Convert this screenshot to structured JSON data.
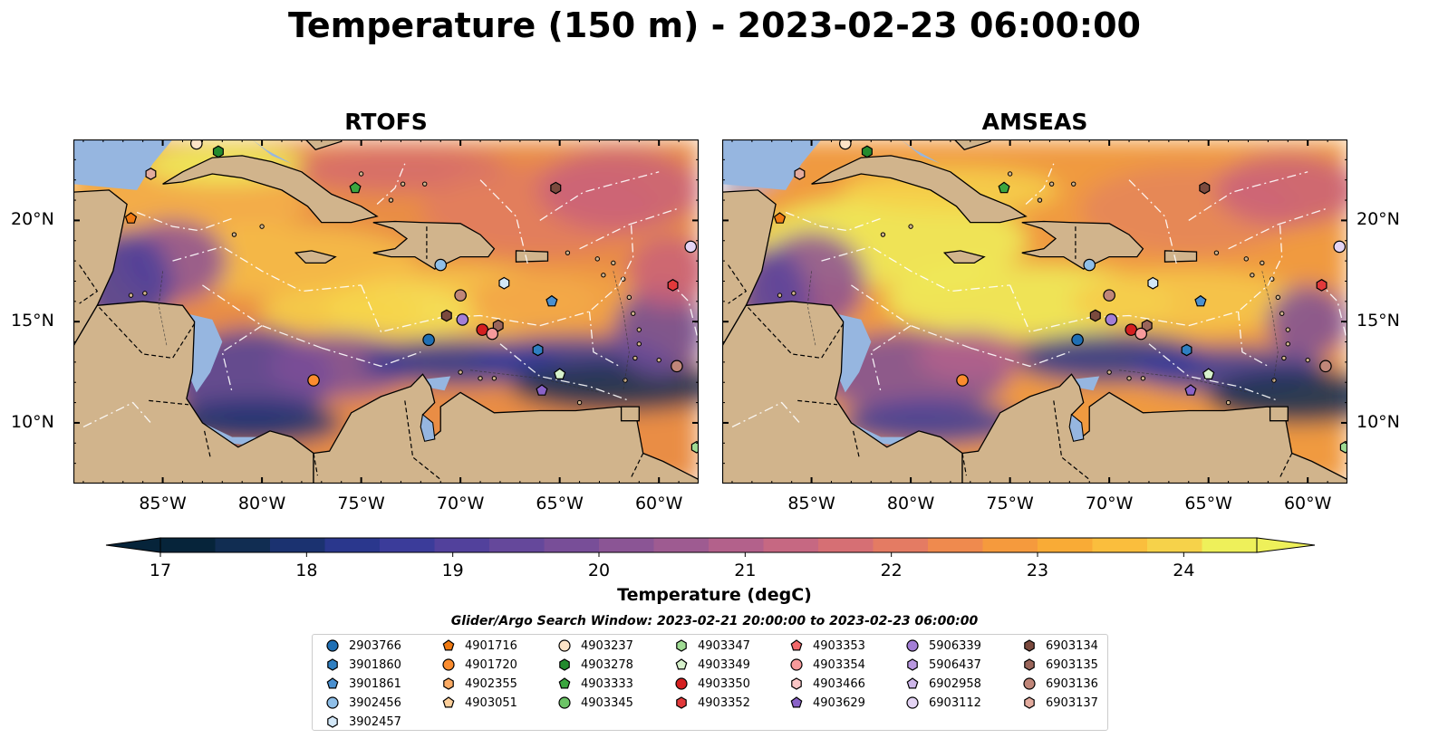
{
  "title": "Temperature (150 m) - 2023-02-23 06:00:00",
  "panels": [
    {
      "title": "RTOFS"
    },
    {
      "title": "AMSEAS"
    }
  ],
  "axes": {
    "lon_labels": [
      "85°W",
      "80°W",
      "75°W",
      "70°W",
      "65°W",
      "60°W"
    ],
    "lat_labels": [
      "20°N",
      "15°N",
      "10°N"
    ]
  },
  "colorbar": {
    "label": "Temperature (degC)",
    "ticks": [
      "17",
      "18",
      "19",
      "20",
      "21",
      "22",
      "23",
      "24"
    ],
    "range": [
      17,
      24.5
    ],
    "extend": "both",
    "colors": [
      "#06243a",
      "#112d52",
      "#1b3270",
      "#2a378d",
      "#3b3c9a",
      "#52419c",
      "#65489b",
      "#784e98",
      "#8b5595",
      "#9e5b91",
      "#b3618b",
      "#c66882",
      "#d66f74",
      "#e47b63",
      "#ef8a4e",
      "#f59a3d",
      "#f9ab36",
      "#fabe3d",
      "#f6d24a",
      "#eef05a"
    ]
  },
  "search_window": "Glider/Argo Search Window: 2023-02-21 20:00:00 to 2023-02-23 06:00:00",
  "legend": [
    {
      "id": "2903766",
      "marker": "circle",
      "color": "#1f6fb4"
    },
    {
      "id": "3901860",
      "marker": "hexagon",
      "color": "#2f7fc1"
    },
    {
      "id": "3901861",
      "marker": "pentagon",
      "color": "#4a90d0"
    },
    {
      "id": "3902456",
      "marker": "circle",
      "color": "#8fbfe8"
    },
    {
      "id": "3902457",
      "marker": "hexagon",
      "color": "#d2e7f7"
    },
    {
      "id": "4901716",
      "marker": "pentagon",
      "color": "#f07a12"
    },
    {
      "id": "4901720",
      "marker": "circle",
      "color": "#fb8c2e"
    },
    {
      "id": "4902355",
      "marker": "hexagon",
      "color": "#fcab64"
    },
    {
      "id": "4903051",
      "marker": "pentagon",
      "color": "#fdcf9a"
    },
    {
      "id": "4903237",
      "marker": "circle",
      "color": "#fde3c7"
    },
    {
      "id": "4903278",
      "marker": "hexagon",
      "color": "#238b2e"
    },
    {
      "id": "4903333",
      "marker": "pentagon",
      "color": "#3ba63f"
    },
    {
      "id": "4903345",
      "marker": "circle",
      "color": "#6cc466"
    },
    {
      "id": "4903347",
      "marker": "hexagon",
      "color": "#a0dc94"
    },
    {
      "id": "4903349",
      "marker": "pentagon",
      "color": "#d7f2cc"
    },
    {
      "id": "4903350",
      "marker": "circle",
      "color": "#d41f20"
    },
    {
      "id": "4903352",
      "marker": "hexagon",
      "color": "#e2393b"
    },
    {
      "id": "4903353",
      "marker": "pentagon",
      "color": "#f1686a"
    },
    {
      "id": "4903354",
      "marker": "circle",
      "color": "#f79a9b"
    },
    {
      "id": "4903466",
      "marker": "hexagon",
      "color": "#fbc6c6"
    },
    {
      "id": "4903629",
      "marker": "pentagon",
      "color": "#8a62c8"
    },
    {
      "id": "5906339",
      "marker": "circle",
      "color": "#a37ed6"
    },
    {
      "id": "5906437",
      "marker": "hexagon",
      "color": "#b998e0"
    },
    {
      "id": "6902958",
      "marker": "pentagon",
      "color": "#ceb7ea"
    },
    {
      "id": "6903112",
      "marker": "circle",
      "color": "#e4d4f4"
    },
    {
      "id": "6903134",
      "marker": "hexagon",
      "color": "#7b4a3e"
    },
    {
      "id": "6903135",
      "marker": "hexagon",
      "color": "#9a655a"
    },
    {
      "id": "6903136",
      "marker": "circle",
      "color": "#c08679"
    },
    {
      "id": "6903137",
      "marker": "hexagon",
      "color": "#e3ab9e"
    }
  ],
  "map": {
    "lon_range": [
      -89.5,
      -58.0
    ],
    "lat_range": [
      7.0,
      24.0
    ],
    "land_color": "#d1b48c",
    "ocean_color": "#96b6e0",
    "floats": [
      {
        "lon": -86.6,
        "lat": 20.1,
        "id": "4901716"
      },
      {
        "lon": -85.6,
        "lat": 22.3,
        "id": "6903137"
      },
      {
        "lon": -82.2,
        "lat": 23.4,
        "id": "4903278"
      },
      {
        "lon": -83.3,
        "lat": 23.8,
        "id": "4903237"
      },
      {
        "lon": -75.3,
        "lat": 21.6,
        "id": "4903333"
      },
      {
        "lon": -65.2,
        "lat": 21.6,
        "id": "6903134"
      },
      {
        "lon": -58.4,
        "lat": 18.7,
        "id": "6903112"
      },
      {
        "lon": -59.3,
        "lat": 16.8,
        "id": "4903352"
      },
      {
        "lon": -71.0,
        "lat": 17.8,
        "id": "3902456"
      },
      {
        "lon": -67.8,
        "lat": 16.9,
        "id": "3902457"
      },
      {
        "lon": -70.0,
        "lat": 16.3,
        "id": "6903136"
      },
      {
        "lon": -65.4,
        "lat": 16.0,
        "id": "3901861"
      },
      {
        "lon": -70.7,
        "lat": 15.3,
        "id": "6903134"
      },
      {
        "lon": -69.9,
        "lat": 15.1,
        "id": "5906339"
      },
      {
        "lon": -68.9,
        "lat": 14.6,
        "id": "4903350"
      },
      {
        "lon": -68.1,
        "lat": 14.8,
        "id": "6903135"
      },
      {
        "lon": -68.4,
        "lat": 14.4,
        "id": "4903354"
      },
      {
        "lon": -71.6,
        "lat": 14.1,
        "id": "2903766"
      },
      {
        "lon": -66.1,
        "lat": 13.6,
        "id": "3901860"
      },
      {
        "lon": -59.1,
        "lat": 12.8,
        "id": "6903136"
      },
      {
        "lon": -65.0,
        "lat": 12.4,
        "id": "4903349"
      },
      {
        "lon": -77.4,
        "lat": 12.1,
        "id": "4901720"
      },
      {
        "lon": -65.9,
        "lat": 11.6,
        "id": "4903629"
      },
      {
        "lon": -58.1,
        "lat": 8.8,
        "id": "4903347"
      }
    ]
  }
}
